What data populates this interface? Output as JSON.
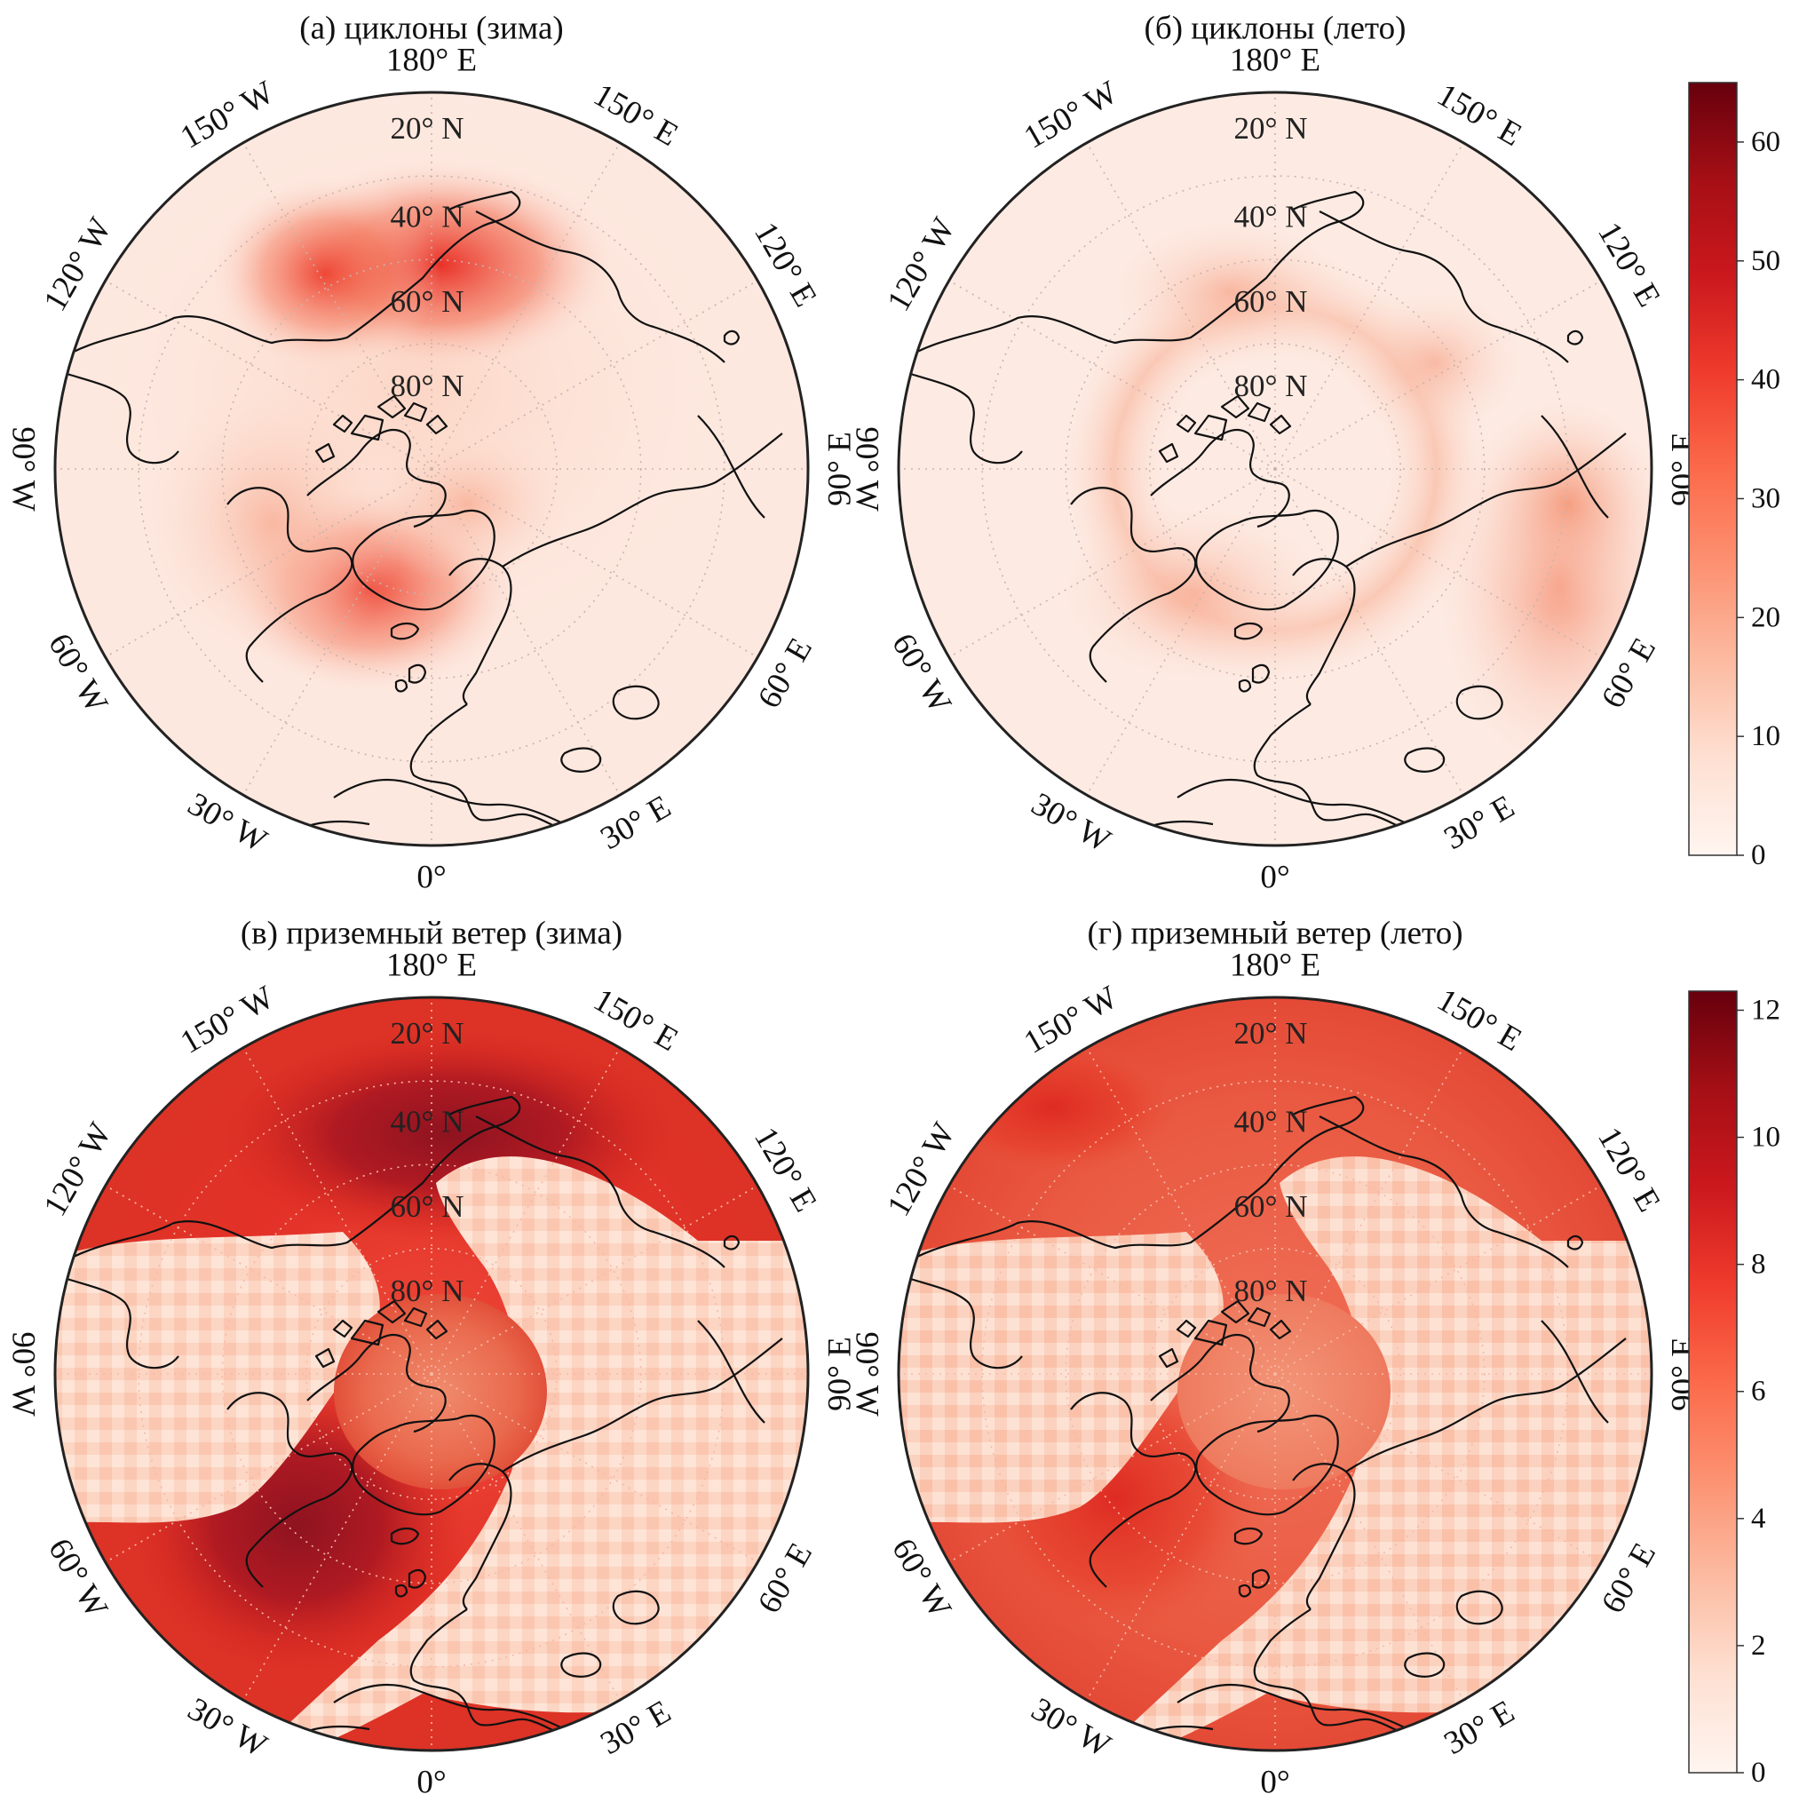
{
  "panels": [
    {
      "id": "a",
      "title": "(a) циклоны (зима)",
      "field": "cyclones_winter"
    },
    {
      "id": "b",
      "title": "(б) циклоны (лето)",
      "field": "cyclones_summer"
    },
    {
      "id": "c",
      "title": "(в) приземный ветер (зима)",
      "field": "wind_winter"
    },
    {
      "id": "d",
      "title": "(г) приземный ветер (лето)",
      "field": "wind_summer"
    }
  ],
  "longitude_labels": {
    "top": "180° E",
    "upper_right": "150° E",
    "right_upper": "120° E",
    "right": "90° E",
    "right_lower": "60° E",
    "lower_right": "30° E",
    "bottom": "0°",
    "lower_left": "30° W",
    "left_lower": "60° W",
    "left": "90° W",
    "left_upper": "120° W",
    "upper_left": "150° W"
  },
  "latitude_labels": [
    "20° N",
    "40° N",
    "60° N",
    "80° N"
  ],
  "colorbars": [
    {
      "for": "cyclones",
      "ticks": [
        "0",
        "10",
        "20",
        "30",
        "40",
        "50",
        "60"
      ],
      "min": 0,
      "max": 65
    },
    {
      "for": "wind",
      "ticks": [
        "0",
        "2",
        "4",
        "6",
        "8",
        "10",
        "12"
      ],
      "min": 0,
      "max": 12.3
    }
  ],
  "colormap": [
    "#fff5f0",
    "#fee0d2",
    "#fcbba1",
    "#fc9272",
    "#fb6a4a",
    "#ef3b2c",
    "#cb181d",
    "#a50f15",
    "#67000d"
  ]
}
